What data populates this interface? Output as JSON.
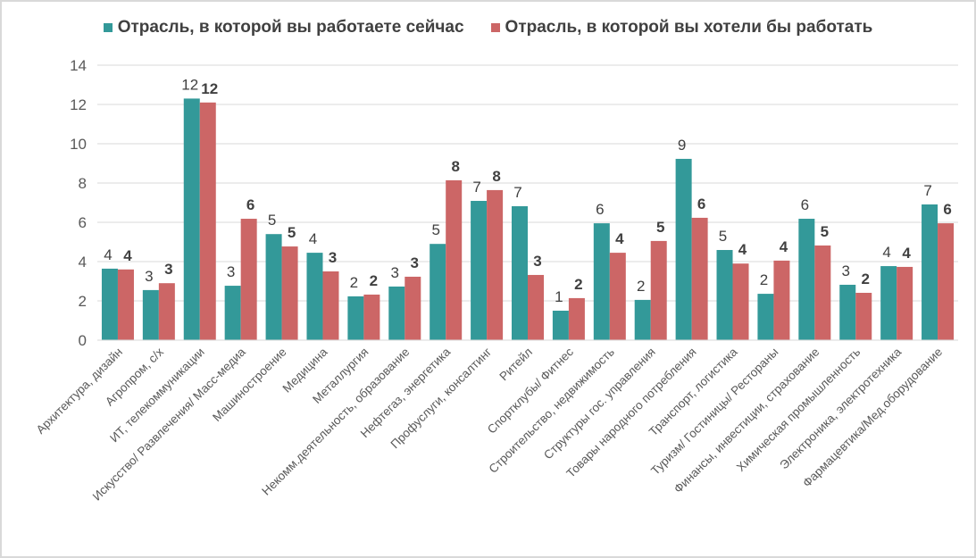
{
  "chart_data": {
    "type": "bar",
    "title": "",
    "xlabel": "",
    "ylabel": "",
    "ylim": [
      0,
      14
    ],
    "yticks": [
      0,
      2,
      4,
      6,
      8,
      10,
      12,
      14
    ],
    "grid": true,
    "legend_position": "top",
    "categories": [
      "Архитектура, дизайн",
      "Агропром, с/х",
      "ИТ, телекоммуникации",
      "Искусство/ Развлечения/ Масс-медиа",
      "Машиностроение",
      "Медицина",
      "Металлургия",
      "Некомм.деятельность, образование",
      "Нефтегаз, энергетика",
      "Профуслуги, консалтинг",
      "Ритейл",
      "Спортклубы/ Фитнес",
      "Строительство, недвижимость",
      "Структуры гос. управления",
      "Товары народного потребления",
      "Транспорт, логистика",
      "Туризм/ Гостиницы/ Рестораны",
      "Финансы, инвестиции, страхование",
      "Химическая промышленность",
      "Электроника, электротехника",
      "Фармацевтика/Мед.оборудование"
    ],
    "series": [
      {
        "name": "Отрасль, в которой вы работаете сейчас",
        "color": "#339999",
        "values": [
          3.64,
          2.55,
          12.3,
          2.77,
          5.4,
          4.45,
          2.23,
          2.73,
          4.9,
          7.09,
          6.82,
          1.5,
          5.95,
          2.05,
          9.23,
          4.59,
          2.36,
          6.18,
          2.82,
          3.77,
          6.91
        ],
        "labels": [
          "4",
          "3",
          "12",
          "3",
          "5",
          "4",
          "2",
          "3",
          "5",
          "7",
          "7",
          "1",
          "6",
          "2",
          "9",
          "5",
          "2",
          "6",
          "3",
          "4",
          "7"
        ]
      },
      {
        "name": "Отрасль, в которой вы хотели бы работать",
        "color": "#cc6666",
        "values": [
          3.6,
          2.9,
          12.1,
          6.18,
          4.77,
          3.5,
          2.32,
          3.23,
          8.14,
          7.64,
          3.32,
          2.14,
          4.45,
          5.05,
          6.23,
          3.9,
          4.05,
          4.82,
          2.41,
          3.73,
          5.95
        ],
        "labels": [
          "4",
          "3",
          "12",
          "6",
          "5",
          "3",
          "2",
          "3",
          "8",
          "8",
          "3",
          "2",
          "4",
          "5",
          "6",
          "4",
          "4",
          "5",
          "2",
          "4",
          "6"
        ]
      }
    ]
  }
}
